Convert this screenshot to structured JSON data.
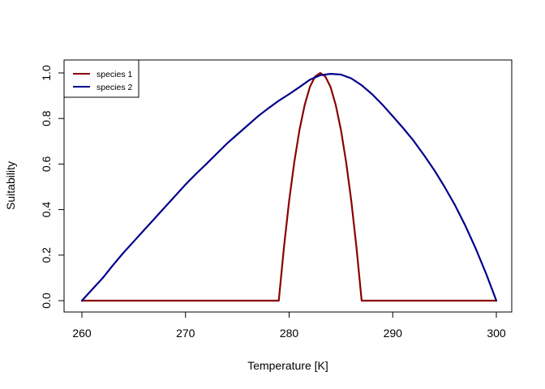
{
  "chart_data": {
    "type": "line",
    "title": "",
    "xlabel": "Temperature [K]",
    "ylabel": "Suitability",
    "xlim": [
      260,
      300
    ],
    "ylim": [
      0,
      1
    ],
    "xticks": [
      260,
      270,
      280,
      290,
      300
    ],
    "yticks": [
      0.0,
      0.2,
      0.4,
      0.6,
      0.8,
      1.0
    ],
    "xtick_labels": [
      "260",
      "270",
      "280",
      "290",
      "300"
    ],
    "ytick_labels": [
      "0.0",
      "0.2",
      "0.4",
      "0.6",
      "0.8",
      "1.0"
    ],
    "grid": false,
    "legend": {
      "position": "top-left"
    },
    "series": [
      {
        "name": "species 1",
        "color": "#8B0000",
        "x": [
          260,
          279,
          279.5,
          280,
          280.5,
          281,
          281.5,
          282,
          282.5,
          283,
          283.5,
          284,
          284.5,
          285,
          285.5,
          286,
          286.5,
          287,
          300
        ],
        "y": [
          0,
          0,
          0.234,
          0.438,
          0.609,
          0.75,
          0.859,
          0.938,
          0.984,
          1.0,
          0.984,
          0.938,
          0.859,
          0.75,
          0.609,
          0.438,
          0.234,
          0,
          0
        ]
      },
      {
        "name": "species 2",
        "color": "#00008B",
        "x": [
          260,
          261,
          262,
          263,
          264,
          265,
          266,
          267,
          268,
          269,
          270,
          271,
          272,
          273,
          274,
          275,
          276,
          277,
          278,
          279,
          280,
          281,
          282,
          283,
          284,
          285,
          286,
          287,
          288,
          289,
          290,
          291,
          292,
          293,
          294,
          295,
          296,
          297,
          298,
          299,
          300
        ],
        "y": [
          0,
          0.05,
          0.099,
          0.156,
          0.21,
          0.26,
          0.31,
          0.36,
          0.41,
          0.46,
          0.51,
          0.556,
          0.6,
          0.645,
          0.69,
          0.73,
          0.77,
          0.81,
          0.845,
          0.878,
          0.907,
          0.938,
          0.97,
          0.99,
          0.996,
          0.993,
          0.976,
          0.946,
          0.907,
          0.861,
          0.81,
          0.758,
          0.703,
          0.64,
          0.574,
          0.5,
          0.42,
          0.33,
          0.23,
          0.12,
          0
        ]
      }
    ]
  }
}
